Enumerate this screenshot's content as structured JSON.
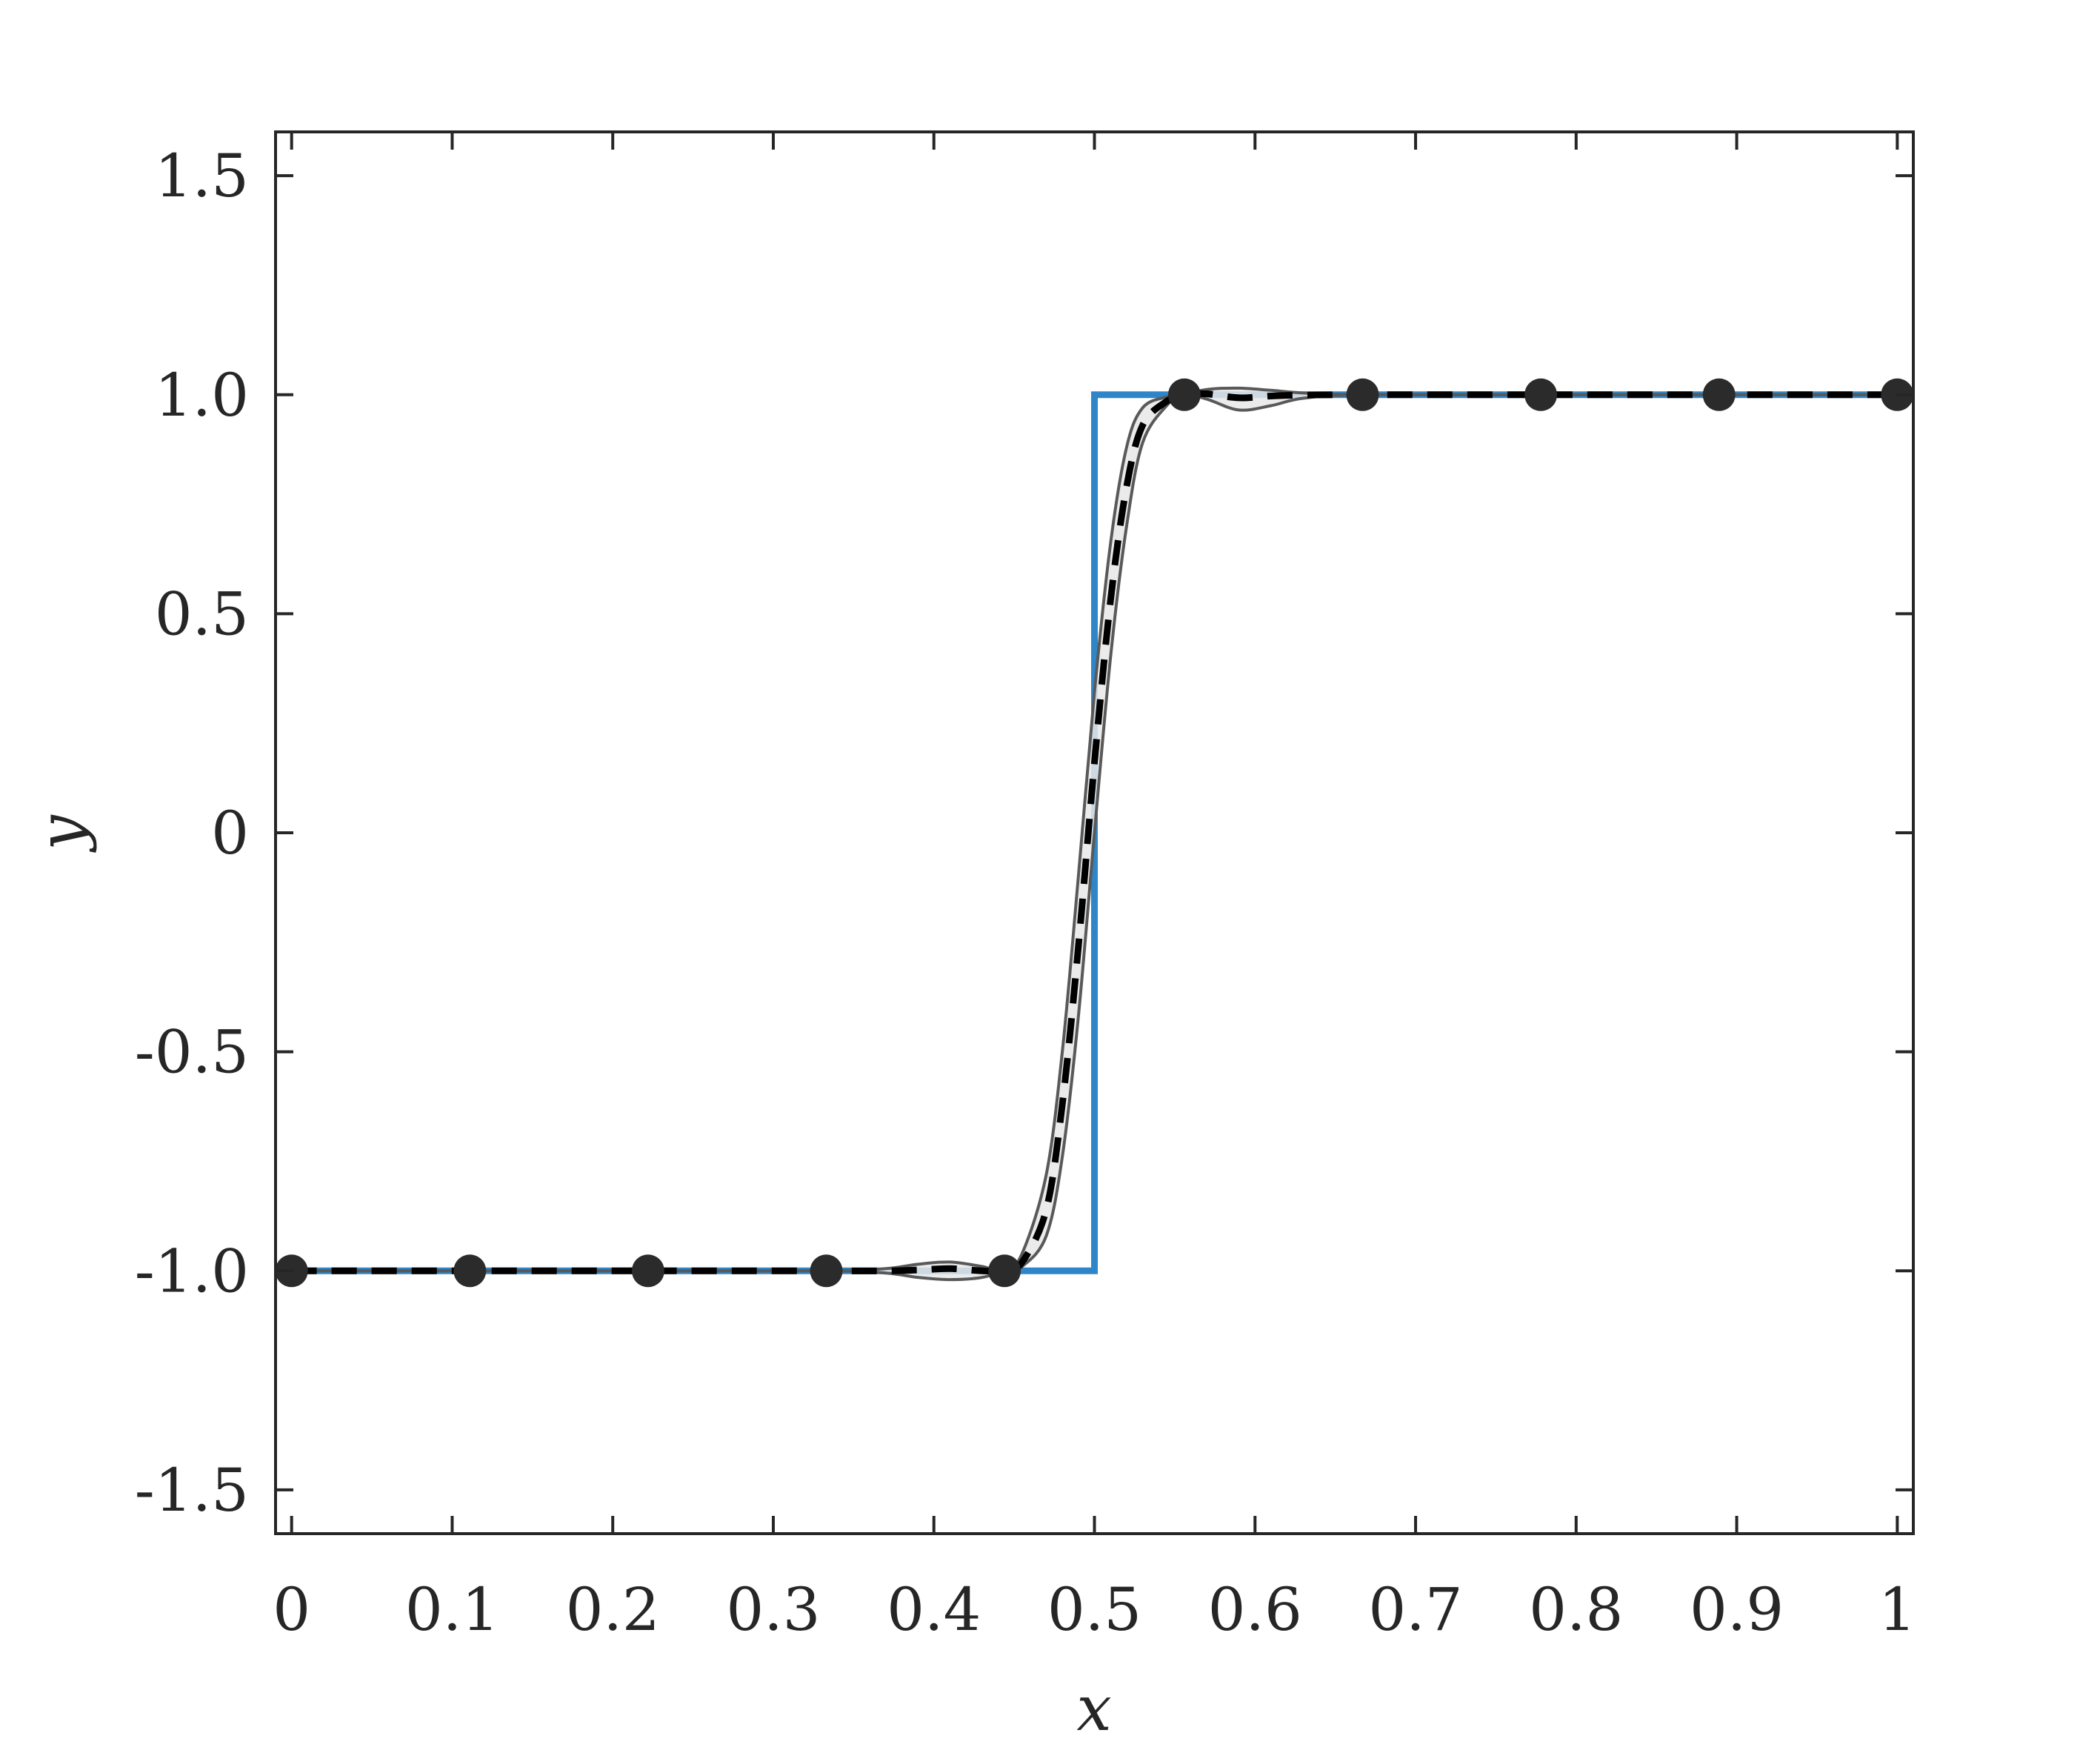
{
  "chart_data": {
    "type": "line",
    "xlabel": "x",
    "ylabel": "y",
    "xlim": [
      -0.01,
      1.01
    ],
    "ylim": [
      -1.6,
      1.6
    ],
    "x_ticks": [
      0,
      0.1,
      0.2,
      0.3,
      0.4,
      0.5,
      0.6,
      0.7,
      0.8,
      0.9,
      1
    ],
    "x_tick_labels": [
      "0",
      "0.1",
      "0.2",
      "0.3",
      "0.4",
      "0.5",
      "0.6",
      "0.7",
      "0.8",
      "0.9",
      "1"
    ],
    "y_ticks": [
      1.5,
      1.0,
      0.5,
      0,
      -0.5,
      -1.0,
      -1.5
    ],
    "y_tick_labels": [
      "1.5",
      "1.0",
      "0.5",
      "0",
      "-0.5",
      "-1.0",
      "-1.5"
    ],
    "grid": false,
    "series": [
      {
        "kind": "step",
        "color": "#2e86c8",
        "x": [
          0,
          0.5,
          0.5,
          1
        ],
        "y": [
          -1,
          -1,
          1,
          1
        ]
      },
      {
        "kind": "band",
        "fill": "#e8e8e8",
        "stroke": "#595959",
        "x": [
          0,
          0.111,
          0.222,
          0.333,
          0.37,
          0.39,
          0.41,
          0.43,
          0.444,
          0.455,
          0.47,
          0.48,
          0.49,
          0.5,
          0.51,
          0.52,
          0.53,
          0.545,
          0.556,
          0.57,
          0.59,
          0.61,
          0.63,
          0.667,
          0.778,
          0.889,
          1
        ],
        "upper": [
          -1,
          -1,
          -1,
          -1,
          -0.995,
          -0.985,
          -0.98,
          -0.99,
          -1,
          -0.96,
          -0.78,
          -0.5,
          -0.1,
          0.32,
          0.66,
          0.88,
          0.97,
          0.995,
          1,
          1.012,
          1.015,
          1.01,
          1.004,
          1,
          1,
          1,
          1
        ],
        "lower": [
          -1,
          -1,
          -1,
          -1,
          -1.005,
          -1.015,
          -1.02,
          -1.015,
          -1,
          -0.99,
          -0.92,
          -0.74,
          -0.42,
          0,
          0.4,
          0.7,
          0.89,
          0.975,
          1,
          0.99,
          0.965,
          0.975,
          0.992,
          1,
          1,
          1,
          1
        ]
      },
      {
        "kind": "line",
        "dash": true,
        "color": "#000000",
        "x": [
          0,
          0.111,
          0.222,
          0.333,
          0.37,
          0.39,
          0.41,
          0.43,
          0.444,
          0.455,
          0.47,
          0.48,
          0.49,
          0.5,
          0.51,
          0.52,
          0.53,
          0.545,
          0.556,
          0.57,
          0.59,
          0.61,
          0.63,
          0.667,
          0.778,
          0.889,
          1
        ],
        "y": [
          -1,
          -1,
          -1,
          -1,
          -1,
          -0.998,
          -0.995,
          -1,
          -1,
          -0.98,
          -0.86,
          -0.62,
          -0.26,
          0.16,
          0.53,
          0.79,
          0.93,
          0.985,
          1,
          1.002,
          0.993,
          0.997,
          0.999,
          1,
          1,
          1,
          1
        ]
      },
      {
        "kind": "points",
        "color": "#2b2b2b",
        "x": [
          0,
          0.111,
          0.222,
          0.333,
          0.444,
          0.556,
          0.667,
          0.778,
          0.889,
          1
        ],
        "y": [
          -1,
          -1,
          -1,
          -1,
          -1,
          1,
          1,
          1,
          1,
          1
        ]
      }
    ]
  }
}
